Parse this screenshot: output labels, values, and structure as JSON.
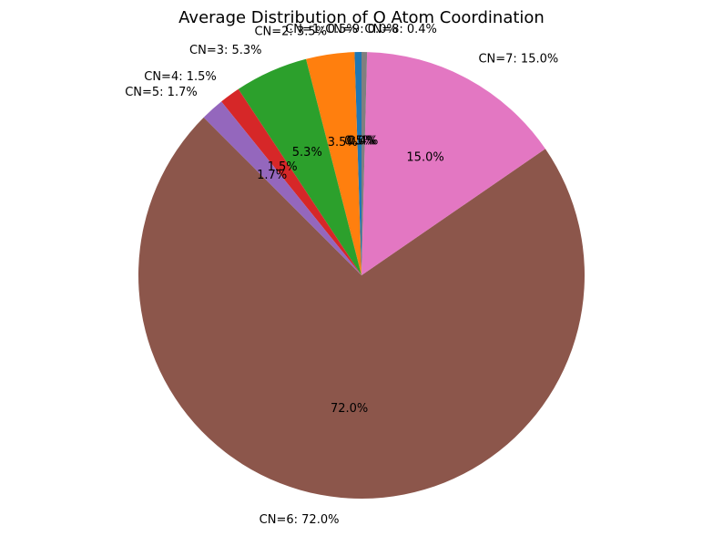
{
  "chart_data": {
    "type": "pie",
    "title": "Average Distribution of O Atom Coordination",
    "start_angle_deg": 90,
    "direction": "counterclockwise",
    "slices": [
      {
        "label": "CN=1",
        "value": 0.5,
        "outer_label": "CN=1: 0.5%",
        "pct_label": "0.5%",
        "color": "#1f77b4"
      },
      {
        "label": "CN=2",
        "value": 3.5,
        "outer_label": "CN=2: 3.5%",
        "pct_label": "3.5%",
        "color": "#ff7f0e"
      },
      {
        "label": "CN=3",
        "value": 5.3,
        "outer_label": "CN=3: 5.3%",
        "pct_label": "5.3%",
        "color": "#2ca02c"
      },
      {
        "label": "CN=4",
        "value": 1.5,
        "outer_label": "CN=4: 1.5%",
        "pct_label": "1.5%",
        "color": "#d62728"
      },
      {
        "label": "CN=5",
        "value": 1.7,
        "outer_label": "CN=5: 1.7%",
        "pct_label": "1.7%",
        "color": "#9467bd"
      },
      {
        "label": "CN=6",
        "value": 72.0,
        "outer_label": "CN=6: 72.0%",
        "pct_label": "72.0%",
        "color": "#8c564b"
      },
      {
        "label": "CN=7",
        "value": 15.0,
        "outer_label": "CN=7: 15.0%",
        "pct_label": "15.0%",
        "color": "#e377c2"
      },
      {
        "label": "CN=8",
        "value": 0.4,
        "outer_label": "CN=8: 0.4%",
        "pct_label": "0.4%",
        "color": "#7f7f7f"
      },
      {
        "label": "CN=9",
        "value": 0.0,
        "outer_label": "CN=9: 0.0%",
        "pct_label": "0.0%",
        "color": "#bcbd22"
      }
    ]
  }
}
